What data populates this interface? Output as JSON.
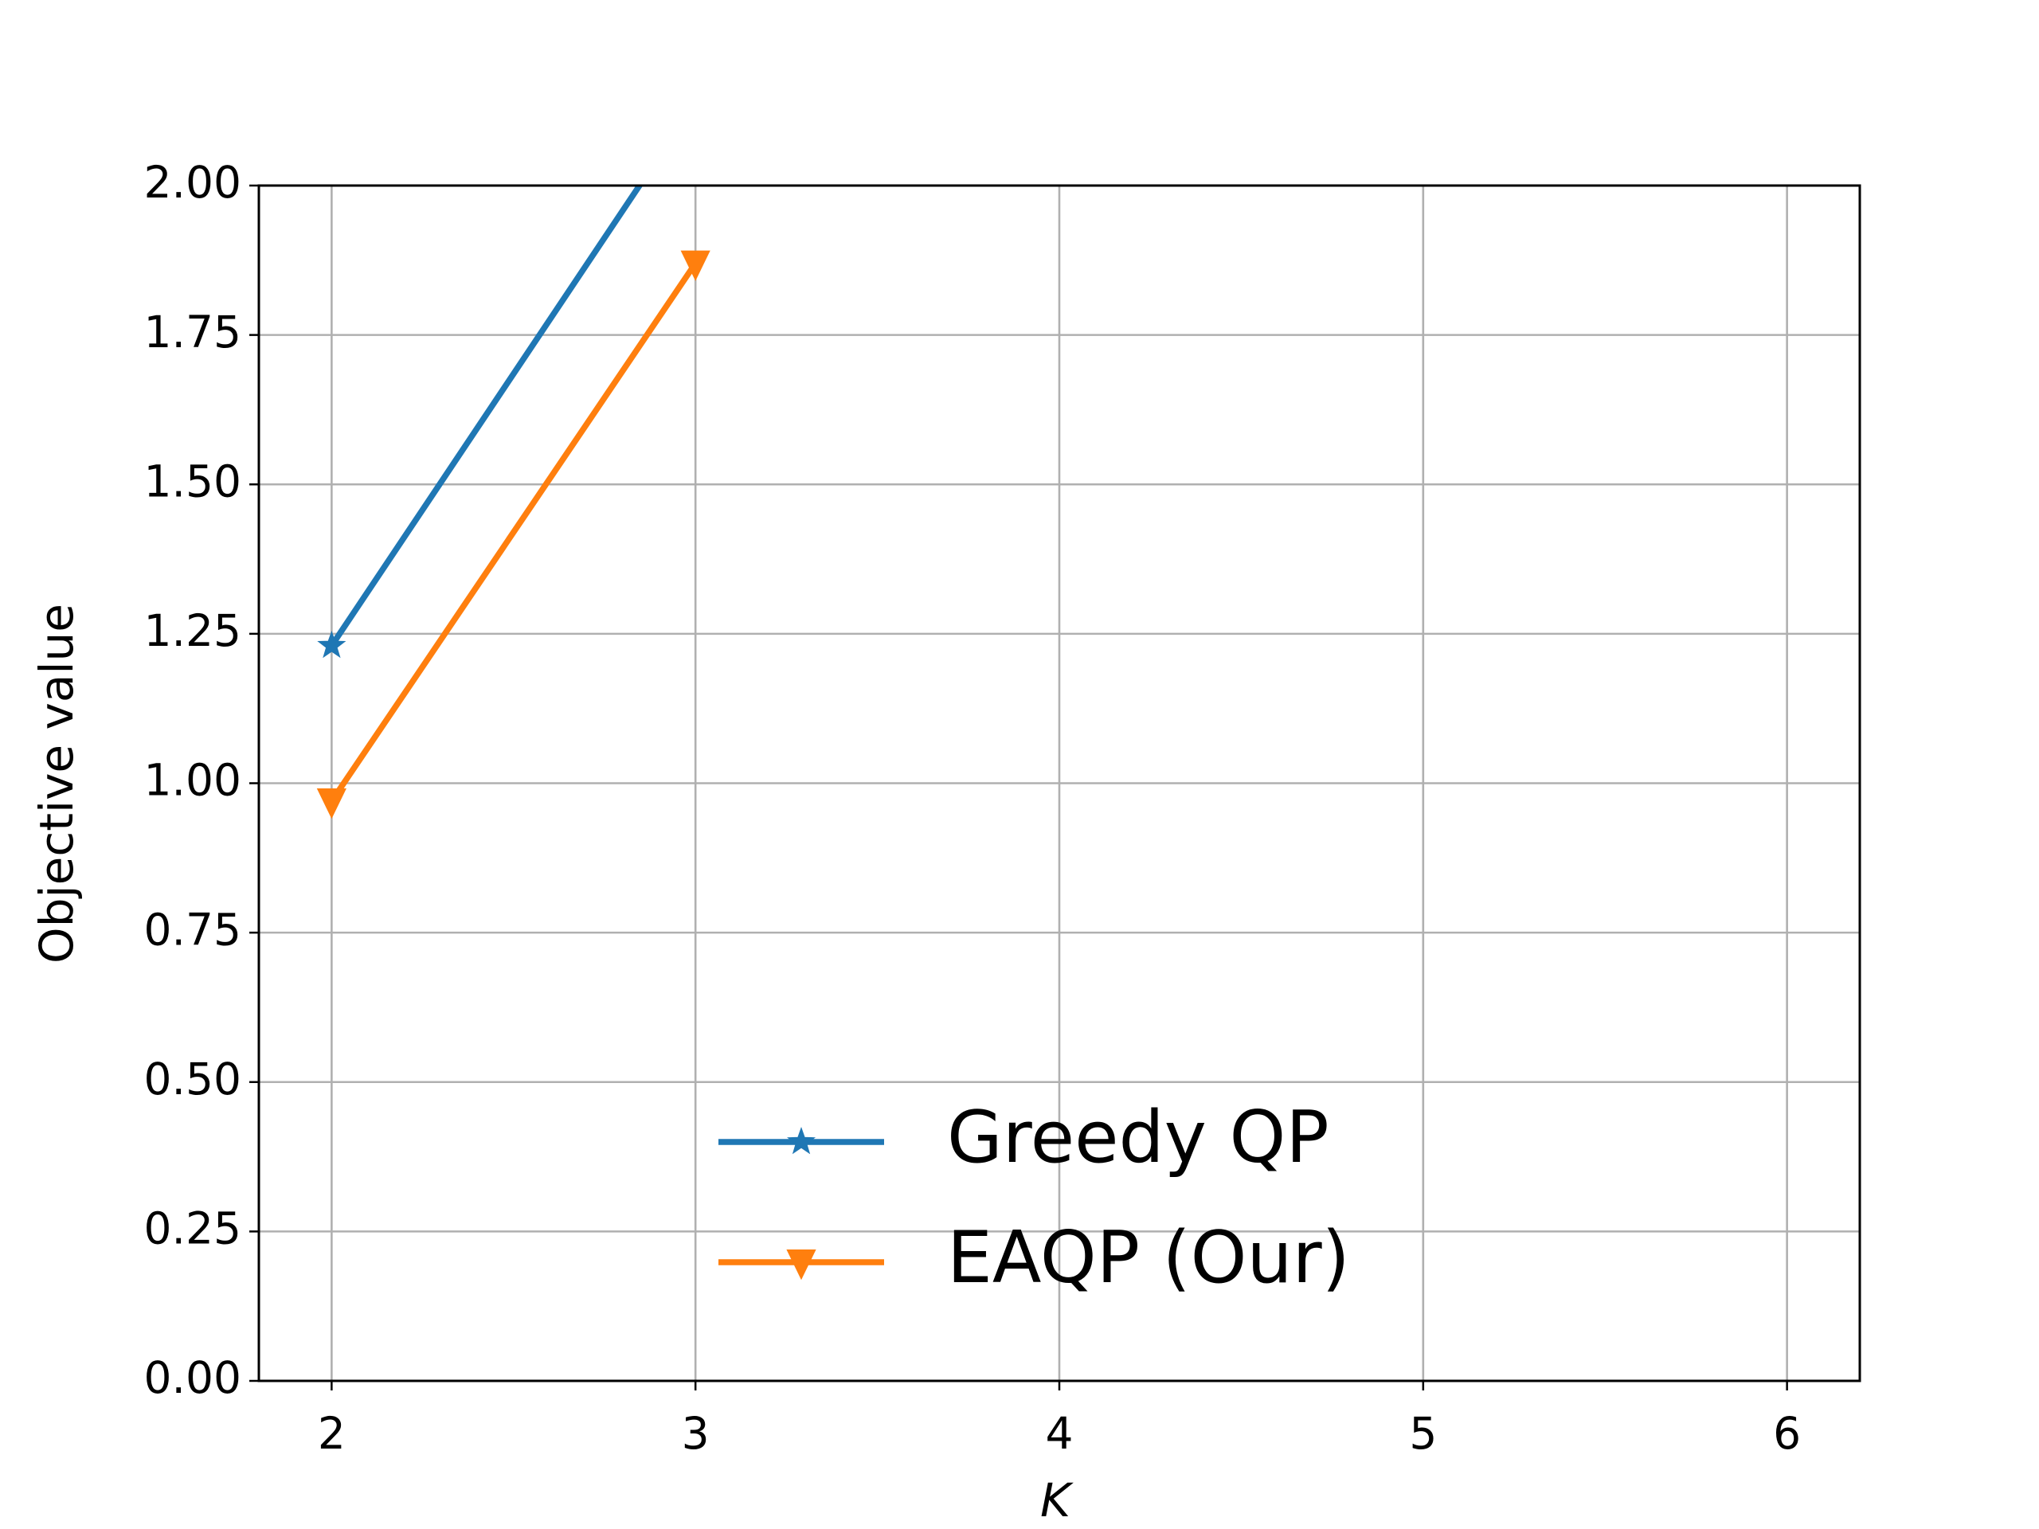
{
  "chart_data": {
    "type": "line",
    "x_label": "K",
    "y_label": "Objective value",
    "x": [
      2,
      3
    ],
    "series": [
      {
        "name": "Greedy QP",
        "color": "#1f77b4",
        "marker": "star",
        "values": [
          1.23,
          2.14
        ]
      },
      {
        "name": "EAQP (Our)",
        "color": "#ff7f0e",
        "marker": "triangle-down",
        "values": [
          0.97,
          1.87
        ]
      }
    ],
    "xlim": [
      1.8,
      6.2
    ],
    "xticks": [
      2,
      3,
      4,
      5,
      6
    ],
    "ylim": [
      0,
      2
    ],
    "yticks": [
      {
        "value": 0,
        "label": "0.00"
      },
      {
        "value": 0.25,
        "label": "0.25"
      },
      {
        "value": 0.5,
        "label": "0.50"
      },
      {
        "value": 0.75,
        "label": "0.75"
      },
      {
        "value": 1,
        "label": "1.00"
      },
      {
        "value": 1.25,
        "label": "1.25"
      },
      {
        "value": 1.5,
        "label": "1.50"
      },
      {
        "value": 1.75,
        "label": "1.75"
      },
      {
        "value": 2,
        "label": "2.00"
      }
    ],
    "grid": true,
    "legend": "lower center"
  }
}
